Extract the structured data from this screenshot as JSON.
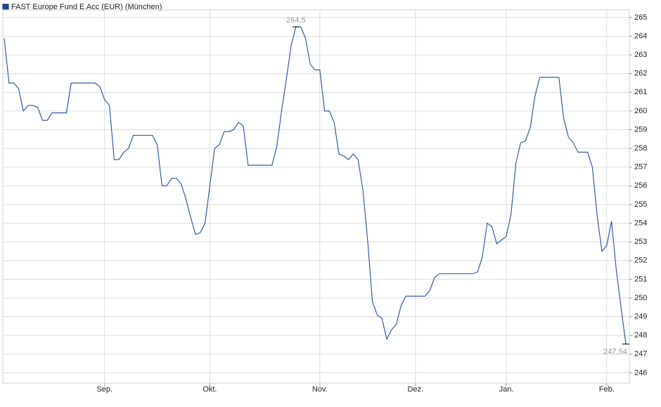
{
  "chart_data": {
    "type": "line",
    "categories": [
      null,
      null,
      null,
      null,
      null,
      null,
      null,
      null,
      null,
      null,
      null,
      null,
      null,
      null,
      null,
      null,
      null,
      null,
      null,
      null,
      null,
      "Sep.",
      null,
      null,
      null,
      null,
      null,
      null,
      null,
      null,
      null,
      null,
      null,
      null,
      null,
      null,
      null,
      null,
      null,
      null,
      null,
      null,
      null,
      "Okt.",
      null,
      null,
      null,
      null,
      null,
      null,
      null,
      null,
      null,
      null,
      null,
      null,
      null,
      null,
      null,
      null,
      null,
      null,
      null,
      null,
      null,
      null,
      "Nov.",
      null,
      null,
      null,
      null,
      null,
      null,
      null,
      null,
      null,
      null,
      null,
      null,
      null,
      null,
      null,
      null,
      null,
      null,
      null,
      "Dez.",
      null,
      null,
      null,
      null,
      null,
      null,
      null,
      null,
      null,
      null,
      null,
      null,
      null,
      null,
      null,
      null,
      null,
      null,
      "Jan.",
      null,
      null,
      null,
      null,
      null,
      null,
      null,
      null,
      null,
      null,
      null,
      null,
      null,
      null,
      null,
      null,
      null,
      null,
      null,
      null,
      "Feb.",
      null,
      null,
      null,
      null
    ],
    "series": [
      {
        "name": "FAST Europe Fund E Acc (EUR) (München)",
        "color": "#1d4f9f",
        "values": [
          263.9,
          261.5,
          261.5,
          261.2,
          260.0,
          260.3,
          260.3,
          260.2,
          259.5,
          259.5,
          259.9,
          259.9,
          259.9,
          259.9,
          261.5,
          261.5,
          261.5,
          261.5,
          261.5,
          261.5,
          261.3,
          260.6,
          260.3,
          257.4,
          257.4,
          257.8,
          258.0,
          258.7,
          258.7,
          258.7,
          258.7,
          258.7,
          258.2,
          256.0,
          256.0,
          256.4,
          256.4,
          256.1,
          255.3,
          254.3,
          253.4,
          253.5,
          254.0,
          256.0,
          258.0,
          258.2,
          258.9,
          258.9,
          259.0,
          259.4,
          259.2,
          257.1,
          257.1,
          257.1,
          257.1,
          257.1,
          257.1,
          258.1,
          260.0,
          261.7,
          263.5,
          264.5,
          264.5,
          263.9,
          262.5,
          262.2,
          262.2,
          260.0,
          260.0,
          259.4,
          257.7,
          257.6,
          257.4,
          257.7,
          257.4,
          255.8,
          253.1,
          249.8,
          249.1,
          248.9,
          247.8,
          248.3,
          248.6,
          249.6,
          250.1,
          250.1,
          250.1,
          250.1,
          250.1,
          250.4,
          251.1,
          251.3,
          251.3,
          251.3,
          251.3,
          251.3,
          251.3,
          251.3,
          251.3,
          251.4,
          252.2,
          254.0,
          253.8,
          252.9,
          253.1,
          253.3,
          254.5,
          257.2,
          258.3,
          258.4,
          259.1,
          260.8,
          261.8,
          261.8,
          261.8,
          261.8,
          261.8,
          259.6,
          258.6,
          258.3,
          257.8,
          257.8,
          257.8,
          257.0,
          254.4,
          252.5,
          252.8,
          254.1,
          251.5,
          249.5,
          247.54
        ],
        "value_labels": [
          null,
          null,
          null,
          null,
          null,
          null,
          null,
          null,
          null,
          null,
          null,
          null,
          null,
          null,
          null,
          null,
          null,
          null,
          null,
          null,
          null,
          null,
          null,
          null,
          null,
          null,
          null,
          null,
          null,
          null,
          null,
          null,
          null,
          null,
          null,
          null,
          null,
          null,
          null,
          null,
          null,
          null,
          null,
          null,
          null,
          null,
          null,
          null,
          null,
          null,
          null,
          null,
          null,
          null,
          null,
          null,
          null,
          null,
          null,
          null,
          null,
          "264,5",
          null,
          null,
          null,
          null,
          null,
          null,
          null,
          null,
          null,
          null,
          null,
          null,
          null,
          null,
          null,
          null,
          null,
          null,
          null,
          null,
          null,
          null,
          null,
          null,
          null,
          null,
          null,
          null,
          null,
          null,
          null,
          null,
          null,
          null,
          null,
          null,
          null,
          null,
          null,
          null,
          null,
          null,
          null,
          null,
          null,
          null,
          null,
          null,
          null,
          null,
          null,
          null,
          null,
          null,
          null,
          null,
          null,
          null,
          null,
          null,
          null,
          null,
          null,
          null,
          null,
          null,
          null,
          null,
          "247,54"
        ]
      }
    ],
    "ylim": [
      245.45,
      265.41
    ],
    "yticks": [
      246,
      247,
      248,
      249,
      250,
      251,
      252,
      253,
      254,
      255,
      256,
      257,
      258,
      259,
      260,
      261,
      262,
      263,
      264,
      265
    ],
    "grid": true
  }
}
